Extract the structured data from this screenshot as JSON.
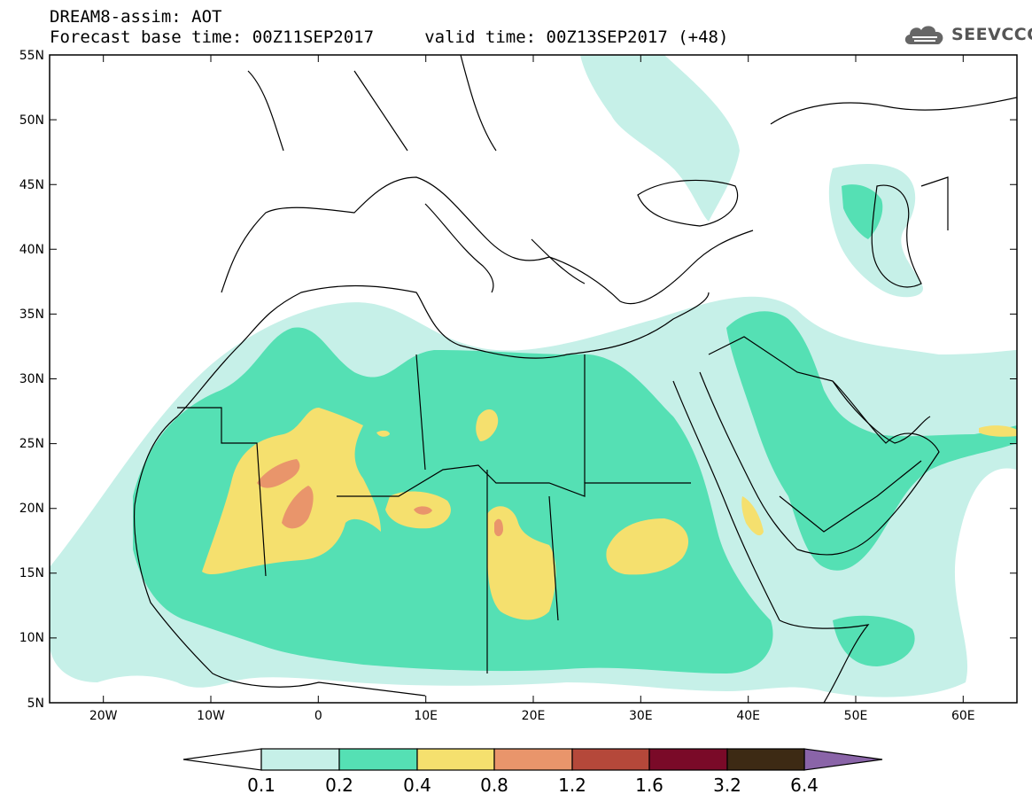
{
  "header": {
    "title": "DREAM8-assim: AOT",
    "subtitle": "Forecast base time: 00Z11SEP2017     valid time: 00Z13SEP2017 (+48)",
    "logo_text": "SEEVCCC"
  },
  "map": {
    "lat_labels": [
      "55N",
      "50N",
      "45N",
      "40N",
      "35N",
      "30N",
      "25N",
      "20N",
      "15N",
      "10N",
      "5N"
    ],
    "lon_labels": [
      "20W",
      "10W",
      "0",
      "10E",
      "20E",
      "30E",
      "40E",
      "50E",
      "60E"
    ],
    "extent": {
      "lon_min": -25,
      "lon_max": 65,
      "lat_min": 5,
      "lat_max": 55
    }
  },
  "legend": {
    "labels": [
      "0.1",
      "0.2",
      "0.4",
      "0.8",
      "1.2",
      "1.6",
      "3.2",
      "6.4"
    ],
    "colors": [
      "#c6f0e8",
      "#55e0b4",
      "#f5e06e",
      "#e9956b",
      "#b5483a",
      "#7a0a28",
      "#3d2a14"
    ],
    "under_color": "#ffffff",
    "over_color": "#8a64a8"
  }
}
